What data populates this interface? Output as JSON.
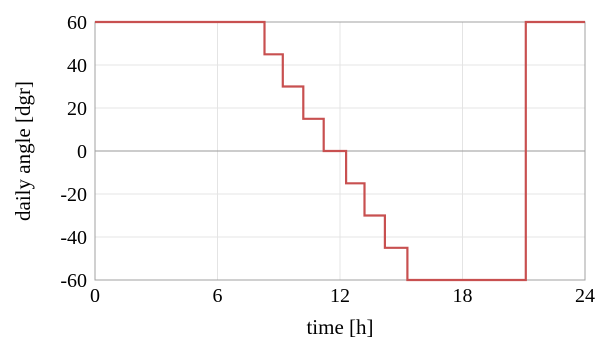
{
  "chart_data": {
    "type": "line",
    "title": "",
    "xlabel": "time [h]",
    "ylabel": "daily angle [dgr]",
    "xlim": [
      0,
      24
    ],
    "ylim": [
      -60,
      60
    ],
    "x_ticks": [
      0,
      6,
      12,
      18,
      24
    ],
    "y_ticks": [
      60,
      40,
      20,
      0,
      -20,
      -40,
      -60
    ],
    "x_tick_labels": [
      "0",
      "6",
      "12",
      "18",
      "24"
    ],
    "y_tick_labels": [
      "60",
      "40",
      "20",
      "0",
      "-20",
      "-40",
      "-60"
    ],
    "grid": true,
    "series": [
      {
        "color": "#c85050",
        "x": [
          0,
          8.3,
          8.3,
          9.2,
          9.2,
          10.2,
          10.2,
          11.2,
          11.2,
          12.3,
          12.3,
          13.2,
          13.2,
          14.2,
          14.2,
          15.3,
          15.3,
          21.1,
          21.1,
          24
        ],
        "y": [
          60,
          60,
          45,
          45,
          30,
          30,
          15,
          15,
          0,
          0,
          -15,
          -15,
          -30,
          -30,
          -45,
          -45,
          -60,
          -60,
          60,
          60
        ]
      }
    ]
  }
}
